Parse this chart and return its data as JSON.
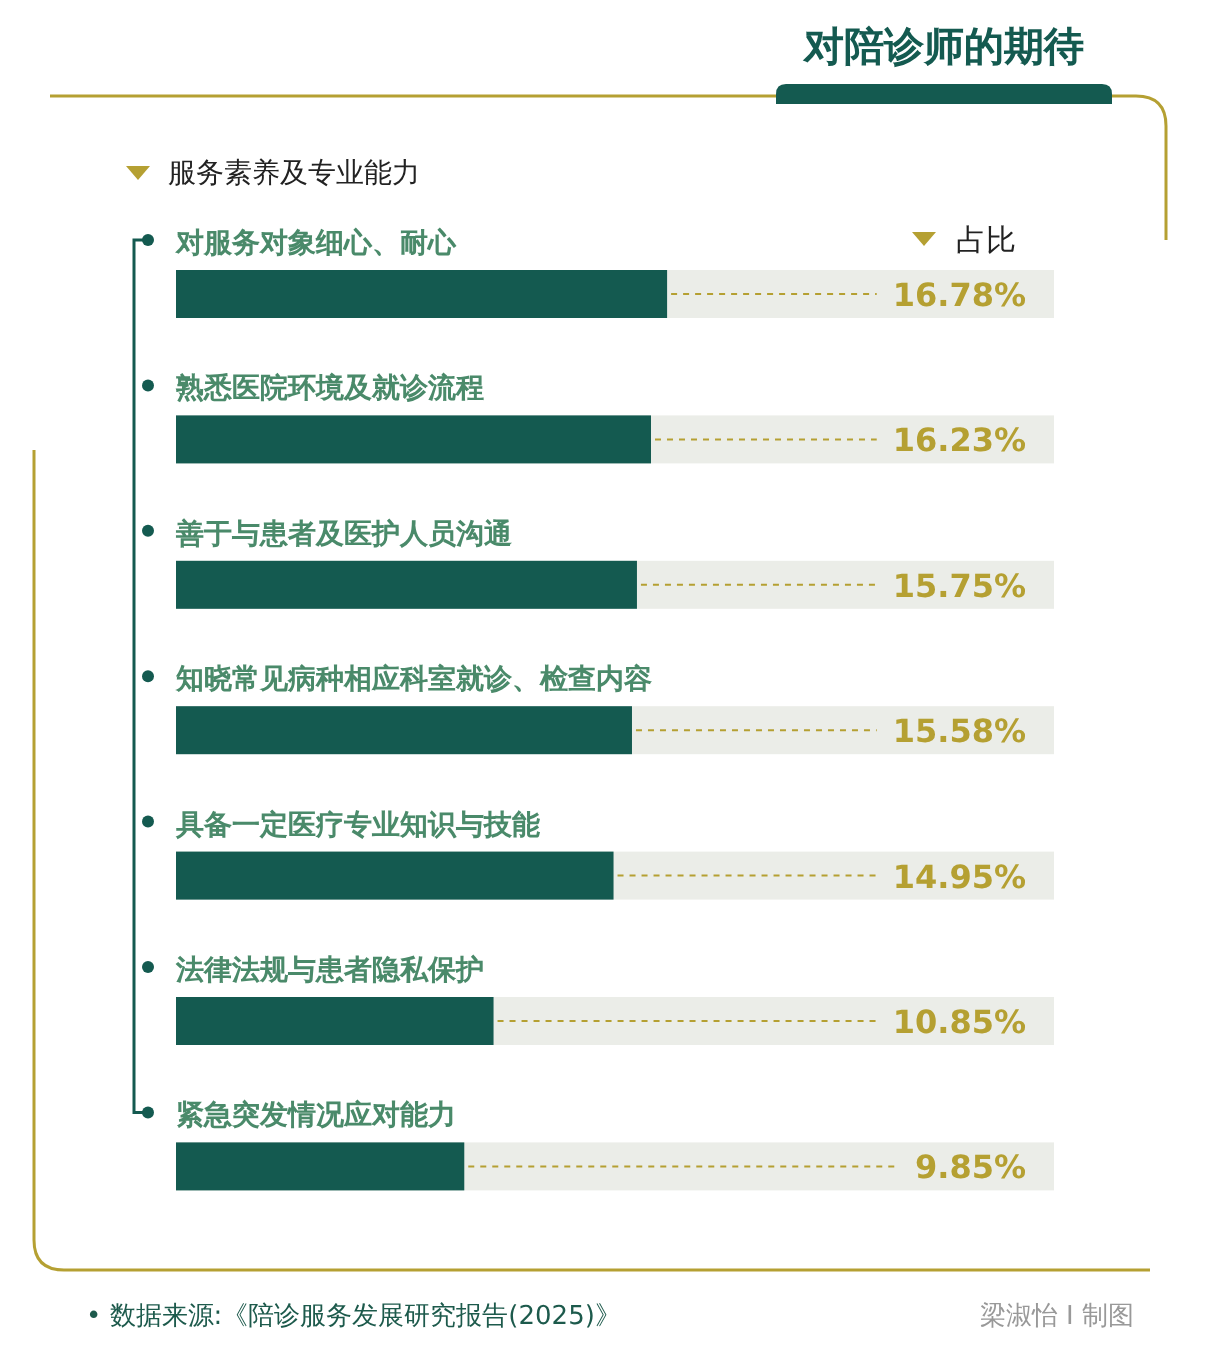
{
  "chart_data": {
    "type": "bar",
    "orientation": "horizontal",
    "title": "对陪诊师的期待",
    "subtitle": "服务素养及专业能力",
    "xlabel": "占比",
    "categories": [
      "对服务对象细心、耐心",
      "熟悉医院环境及就诊流程",
      "善于与患者及医护人员沟通",
      "知晓常见病种相应科室就诊、检查内容",
      "具备一定医疗专业知识与技能",
      "法律法规与患者隐私保护",
      "紧急突发情况应对能力"
    ],
    "values": [
      16.78,
      16.23,
      15.75,
      15.58,
      14.95,
      10.85,
      9.85
    ],
    "value_labels": [
      "16.78%",
      "16.23%",
      "15.75%",
      "15.58%",
      "14.95%",
      "10.85%",
      "9.85%"
    ],
    "color": "#145a50",
    "xlim": [
      0,
      30
    ],
    "annotations": [
      "• 数据来源:《陪诊服务发展研究报告(2025)》",
      "梁淑怡 I 制图"
    ]
  }
}
